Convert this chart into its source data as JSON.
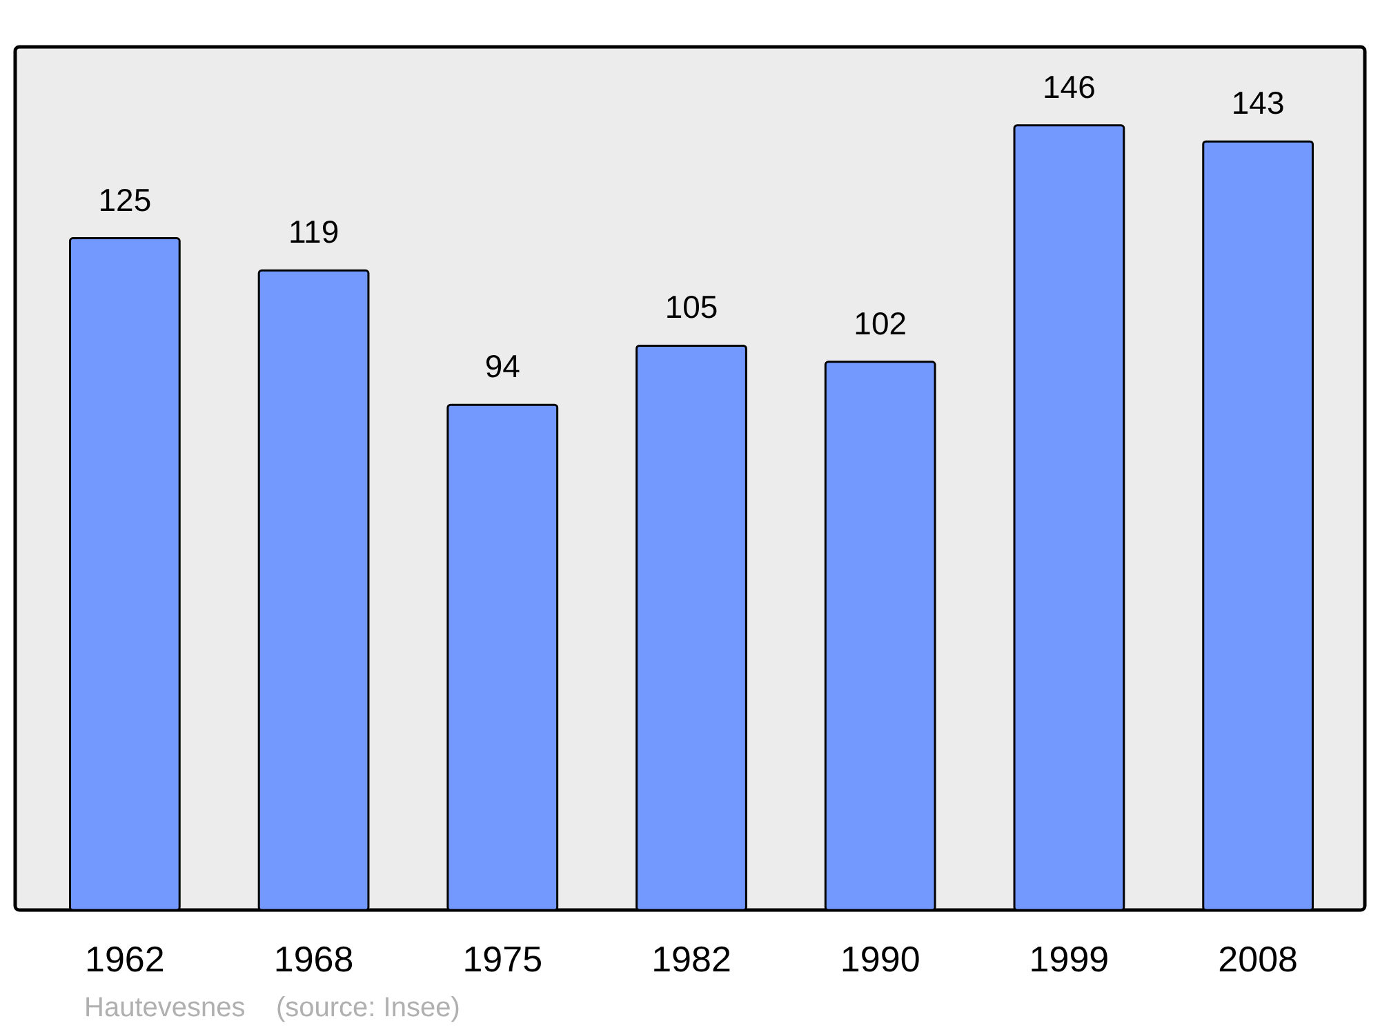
{
  "chart_data": {
    "type": "bar",
    "categories": [
      "1962",
      "1968",
      "1975",
      "1982",
      "1990",
      "1999",
      "2008"
    ],
    "values": [
      125,
      119,
      94,
      105,
      102,
      146,
      143
    ],
    "color": "#7399ff",
    "data_labels": true,
    "annotations": [
      "Hautevesnes    (source: Insee)"
    ]
  }
}
